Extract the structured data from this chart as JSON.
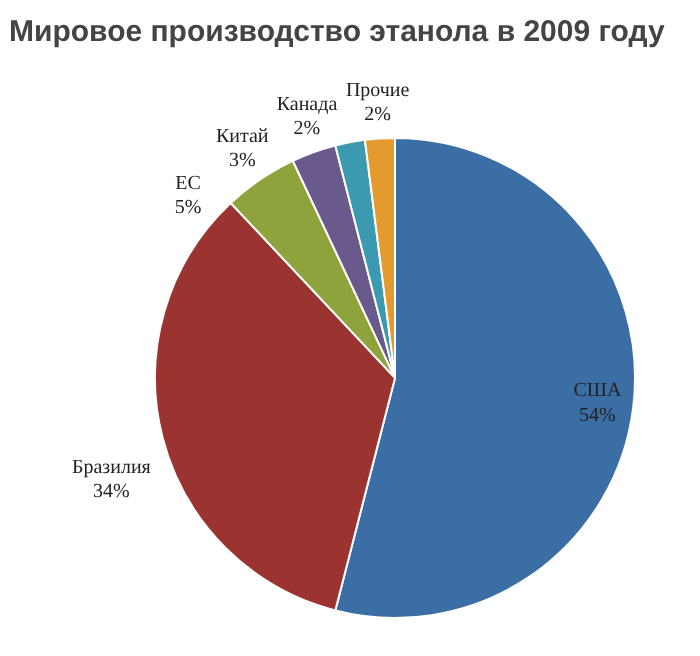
{
  "chart_data": {
    "type": "pie",
    "title": "Мировое производство этанола в 2009 году",
    "categories": [
      "США",
      "Бразилия",
      "ЕС",
      "Китай",
      "Канада",
      "Прочие"
    ],
    "values": [
      54,
      34,
      5,
      3,
      2,
      2
    ],
    "value_labels": [
      "54%",
      "34%",
      "5%",
      "3%",
      "2%",
      "2%"
    ],
    "colors": [
      "#3a6ea5",
      "#9b3431",
      "#8fa33c",
      "#6a5a8c",
      "#3c9ab0",
      "#e59a2d"
    ],
    "legend": false
  }
}
